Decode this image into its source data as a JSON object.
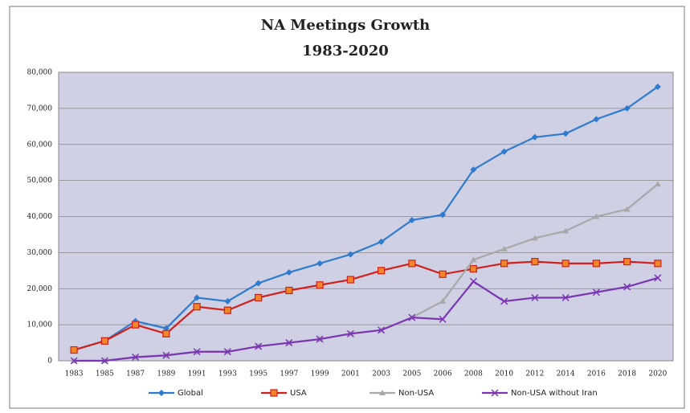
{
  "chart_data": {
    "type": "line",
    "title": "NA Meetings Growth",
    "subtitle": "1983-2020",
    "categories": [
      "1983",
      "1985",
      "1987",
      "1989",
      "1991",
      "1993",
      "1995",
      "1997",
      "1999",
      "2001",
      "2003",
      "2005",
      "2006",
      "2008",
      "2010",
      "2012",
      "2014",
      "2016",
      "2018",
      "2020"
    ],
    "series": [
      {
        "name": "Global",
        "color": "#2e7bcf",
        "marker": "diamond",
        "values": [
          3000,
          5500,
          11000,
          9000,
          17500,
          16500,
          21500,
          24500,
          27000,
          29500,
          33000,
          39000,
          40500,
          53000,
          58000,
          62000,
          63000,
          67000,
          70000,
          76000
        ]
      },
      {
        "name": "USA",
        "color": "#d0201b",
        "marker": "square",
        "values": [
          3000,
          5500,
          10000,
          7500,
          15000,
          14000,
          17500,
          19500,
          21000,
          22500,
          25000,
          27000,
          24000,
          25500,
          27000,
          27500,
          27000,
          27000,
          27500,
          27000
        ]
      },
      {
        "name": "Non-USA",
        "color": "#a8a8a8",
        "marker": "triangle",
        "values": [
          0,
          0,
          1000,
          1500,
          2500,
          2500,
          4000,
          5000,
          6000,
          7500,
          8500,
          12000,
          16500,
          28000,
          31000,
          34000,
          36000,
          40000,
          42000,
          49000
        ]
      },
      {
        "name": "Non-USA without Iran",
        "color": "#7b35b5",
        "marker": "x",
        "values": [
          0,
          0,
          1000,
          1500,
          2500,
          2500,
          4000,
          5000,
          6000,
          7500,
          8500,
          12000,
          11500,
          22000,
          16500,
          17500,
          17500,
          19000,
          20500,
          23000
        ]
      }
    ],
    "ylim": [
      0,
      80000
    ],
    "yticks": [
      0,
      {
        "value": 10000,
        "label": "10,000"
      },
      {
        "value": 20000,
        "label": "20,000"
      },
      {
        "value": 30000,
        "label": "30,000"
      },
      {
        "value": 40000,
        "label": "40,000"
      },
      {
        "value": 50000,
        "label": "50,000"
      },
      {
        "value": 60000,
        "label": "60,000"
      },
      {
        "value": 70000,
        "label": "70,000"
      },
      {
        "value": 80000,
        "label": "80,000"
      }
    ],
    "grid": true,
    "legend": "bottom"
  }
}
